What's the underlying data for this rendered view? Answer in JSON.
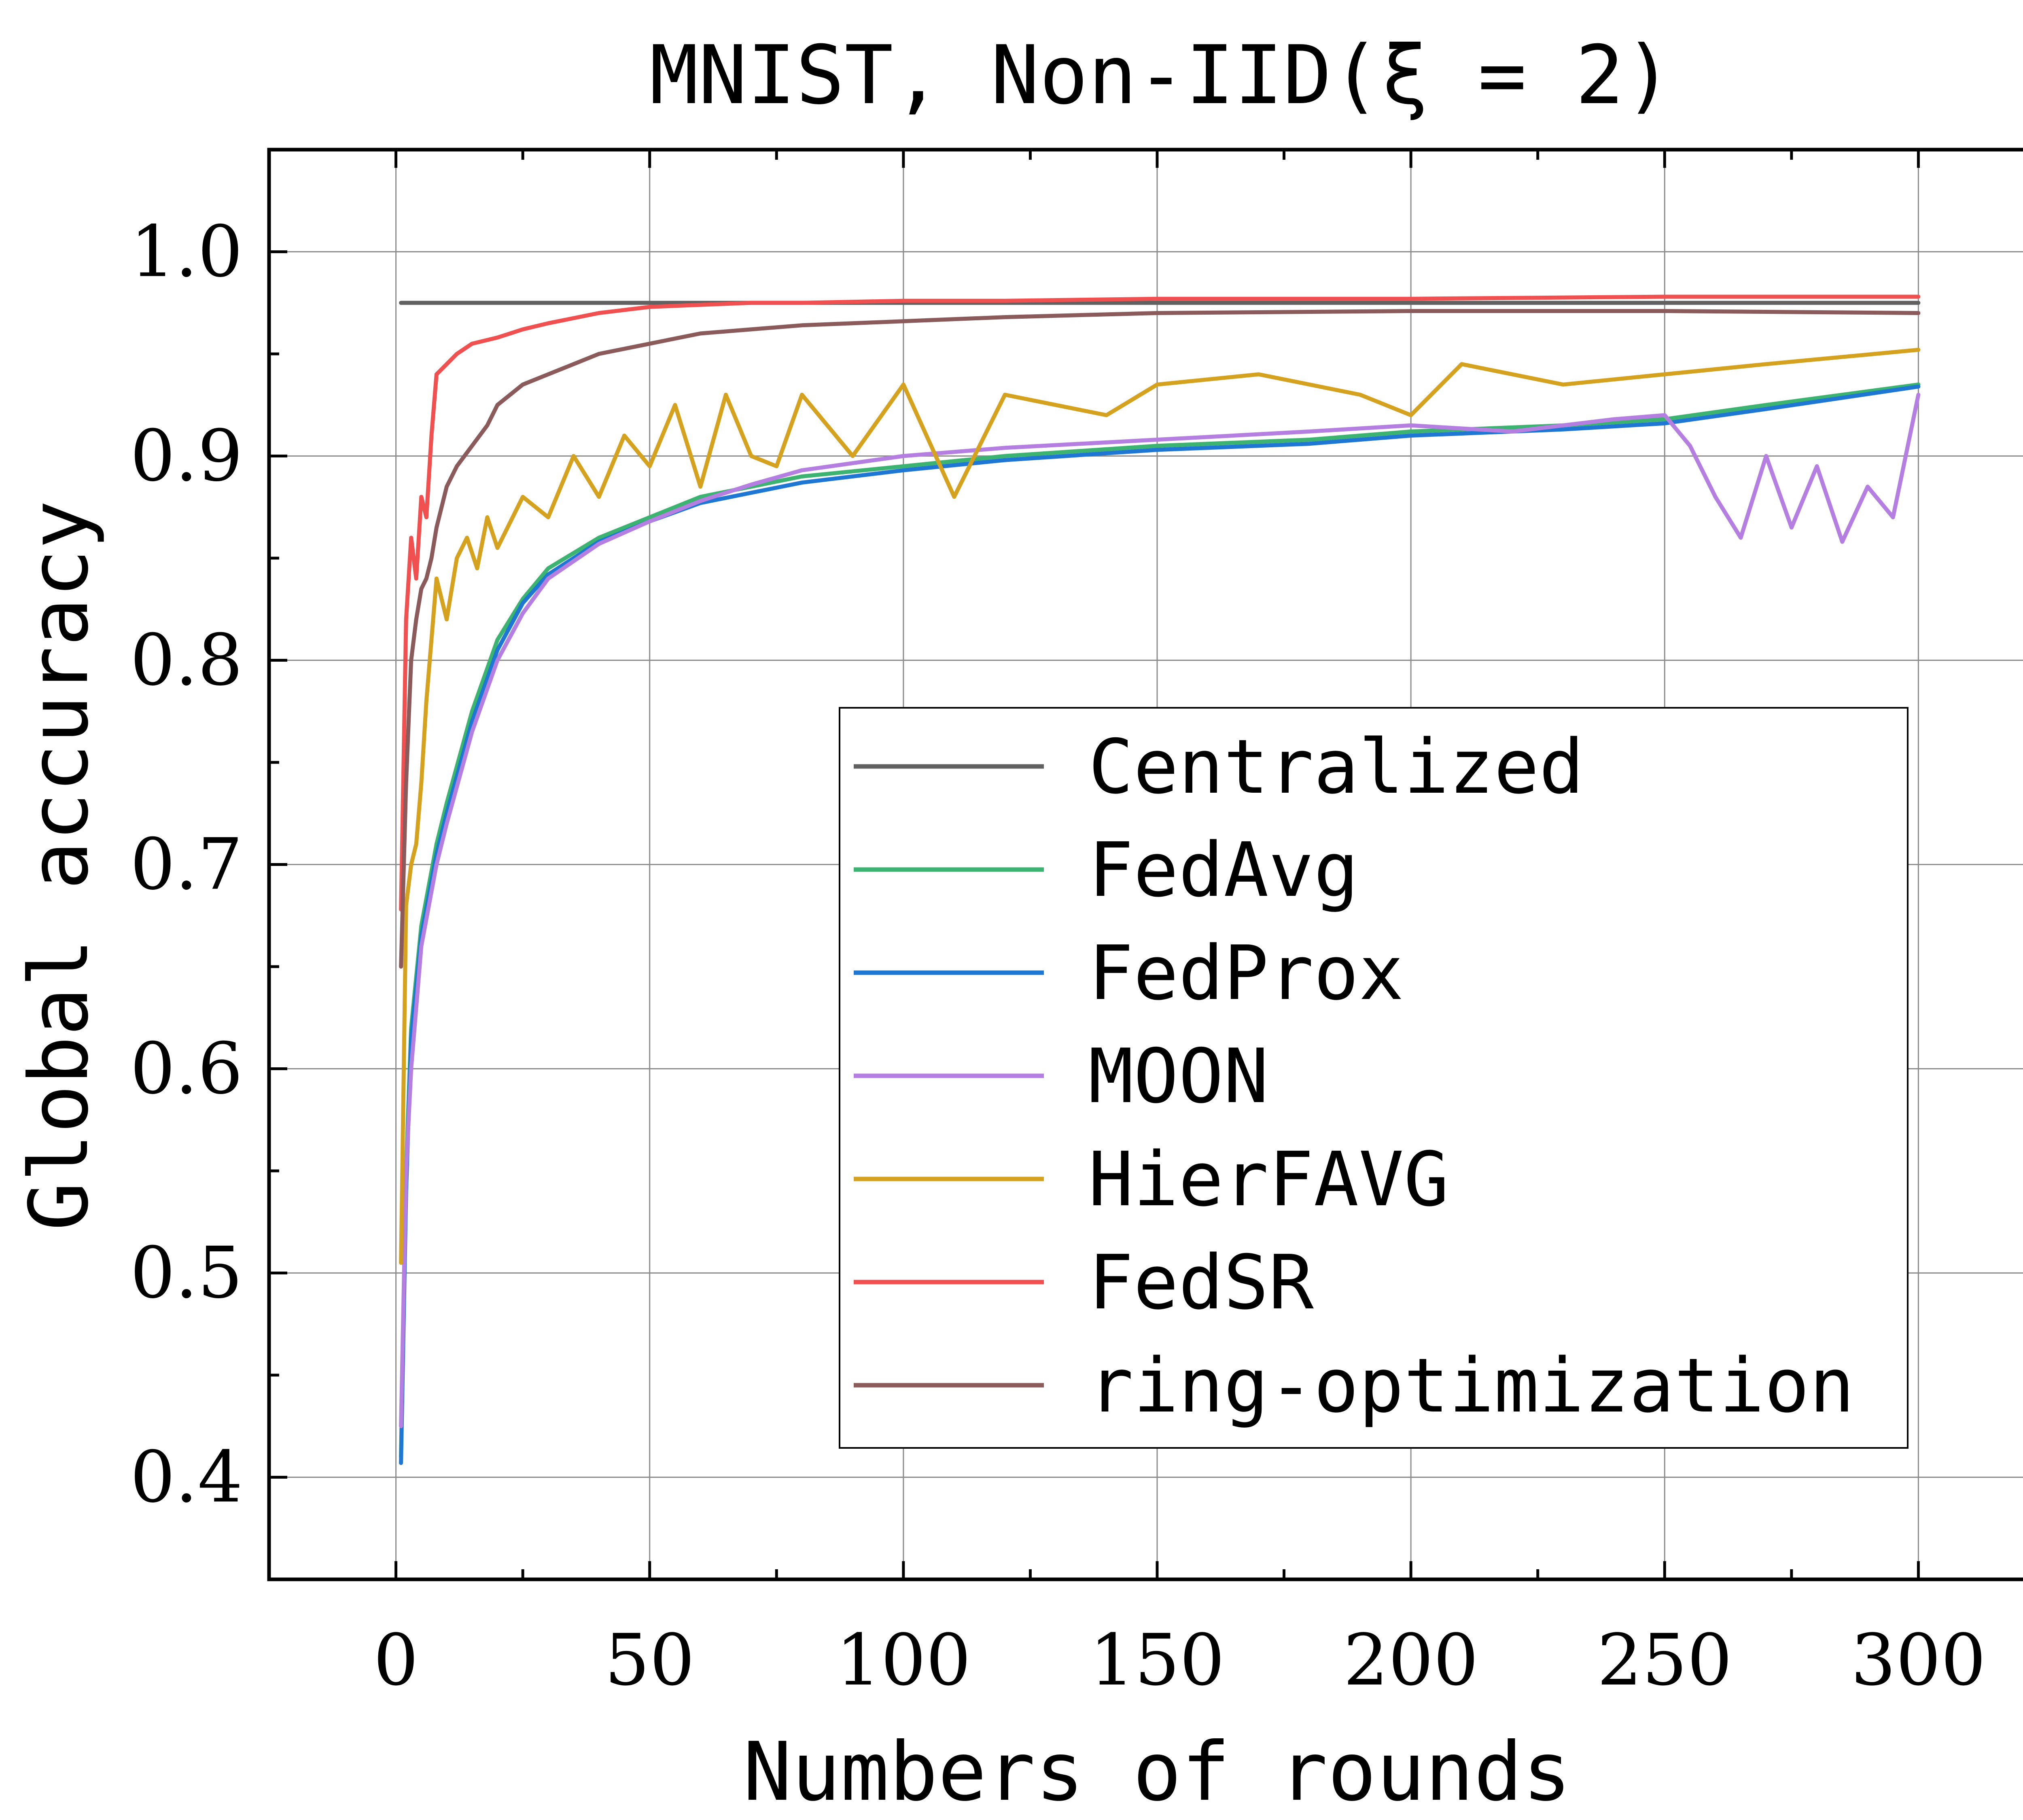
{
  "chart_data": {
    "type": "line",
    "title": "MNIST, Non-IID(ξ = 2)",
    "xlabel": "Numbers of rounds",
    "ylabel": "Global accuracy",
    "xlim": [
      -25,
      325
    ],
    "ylim": [
      0.35,
      1.05
    ],
    "xticks": [
      0,
      50,
      100,
      150,
      200,
      250,
      300
    ],
    "xtick_labels": [
      "0",
      "50",
      "100",
      "150",
      "200",
      "250",
      "300"
    ],
    "yticks": [
      0.4,
      0.5,
      0.6,
      0.7,
      0.8,
      0.9,
      1.0
    ],
    "ytick_labels": [
      "0.4",
      "0.5",
      "0.6",
      "0.7",
      "0.8",
      "0.9",
      "1.0"
    ],
    "grid": true,
    "legend_position": "lower-right",
    "series": [
      {
        "name": "Centralized",
        "color": "#616161",
        "x": [
          1,
          300
        ],
        "y": [
          0.975,
          0.975
        ]
      },
      {
        "name": "FedAvg",
        "color": "#3cb371",
        "x": [
          1,
          2,
          3,
          5,
          8,
          10,
          15,
          20,
          25,
          30,
          40,
          50,
          60,
          70,
          80,
          100,
          120,
          150,
          180,
          200,
          230,
          250,
          270,
          300
        ],
        "y": [
          0.41,
          0.55,
          0.62,
          0.67,
          0.71,
          0.73,
          0.775,
          0.81,
          0.83,
          0.845,
          0.86,
          0.87,
          0.88,
          0.885,
          0.89,
          0.895,
          0.9,
          0.905,
          0.908,
          0.912,
          0.915,
          0.918,
          0.925,
          0.935
        ]
      },
      {
        "name": "FedProx",
        "color": "#1f77d4",
        "x": [
          1,
          2,
          3,
          5,
          8,
          10,
          15,
          20,
          25,
          30,
          40,
          50,
          60,
          70,
          80,
          100,
          120,
          150,
          180,
          200,
          230,
          250,
          270,
          300
        ],
        "y": [
          0.407,
          0.54,
          0.615,
          0.665,
          0.705,
          0.725,
          0.77,
          0.805,
          0.828,
          0.842,
          0.858,
          0.868,
          0.877,
          0.882,
          0.887,
          0.893,
          0.898,
          0.903,
          0.906,
          0.91,
          0.913,
          0.916,
          0.923,
          0.934
        ]
      },
      {
        "name": "MOON",
        "color": "#b47fe0",
        "x": [
          1,
          2,
          3,
          5,
          8,
          10,
          15,
          20,
          25,
          30,
          40,
          50,
          60,
          70,
          80,
          100,
          120,
          150,
          180,
          200,
          220,
          240,
          250,
          255,
          260,
          265,
          270,
          275,
          280,
          285,
          290,
          295,
          300
        ],
        "y": [
          0.425,
          0.55,
          0.6,
          0.66,
          0.7,
          0.72,
          0.765,
          0.8,
          0.823,
          0.84,
          0.857,
          0.868,
          0.878,
          0.886,
          0.893,
          0.9,
          0.904,
          0.908,
          0.912,
          0.915,
          0.912,
          0.918,
          0.92,
          0.905,
          0.88,
          0.86,
          0.9,
          0.865,
          0.895,
          0.858,
          0.885,
          0.87,
          0.93
        ]
      },
      {
        "name": "HierFAVG",
        "color": "#d4a21e",
        "x": [
          1,
          2,
          3,
          4,
          5,
          6,
          8,
          10,
          12,
          14,
          16,
          18,
          20,
          25,
          30,
          35,
          40,
          45,
          50,
          55,
          60,
          65,
          70,
          75,
          80,
          90,
          100,
          110,
          120,
          130,
          140,
          150,
          170,
          190,
          200,
          210,
          230,
          250,
          270,
          300
        ],
        "y": [
          0.505,
          0.68,
          0.7,
          0.71,
          0.74,
          0.78,
          0.84,
          0.82,
          0.85,
          0.86,
          0.845,
          0.87,
          0.855,
          0.88,
          0.87,
          0.9,
          0.88,
          0.91,
          0.895,
          0.925,
          0.885,
          0.93,
          0.9,
          0.895,
          0.93,
          0.9,
          0.935,
          0.88,
          0.93,
          0.925,
          0.92,
          0.935,
          0.94,
          0.93,
          0.92,
          0.945,
          0.935,
          0.94,
          0.945,
          0.952
        ]
      },
      {
        "name": "FedSR",
        "color": "#f05050",
        "x": [
          1,
          2,
          3,
          4,
          5,
          6,
          7,
          8,
          10,
          12,
          15,
          20,
          25,
          30,
          40,
          50,
          60,
          70,
          80,
          100,
          120,
          150,
          200,
          250,
          300
        ],
        "y": [
          0.678,
          0.82,
          0.86,
          0.84,
          0.88,
          0.87,
          0.91,
          0.94,
          0.945,
          0.95,
          0.955,
          0.958,
          0.962,
          0.965,
          0.97,
          0.973,
          0.974,
          0.975,
          0.975,
          0.976,
          0.976,
          0.977,
          0.977,
          0.978,
          0.978
        ]
      },
      {
        "name": "ring-optimization",
        "color": "#8b5a5a",
        "x": [
          1,
          2,
          3,
          4,
          5,
          6,
          7,
          8,
          10,
          12,
          15,
          18,
          20,
          25,
          30,
          35,
          40,
          50,
          60,
          70,
          80,
          90,
          100,
          120,
          150,
          200,
          250,
          300
        ],
        "y": [
          0.65,
          0.74,
          0.8,
          0.82,
          0.835,
          0.84,
          0.85,
          0.865,
          0.885,
          0.895,
          0.905,
          0.915,
          0.925,
          0.935,
          0.94,
          0.945,
          0.95,
          0.955,
          0.96,
          0.962,
          0.964,
          0.965,
          0.966,
          0.968,
          0.97,
          0.971,
          0.971,
          0.97
        ]
      }
    ]
  }
}
